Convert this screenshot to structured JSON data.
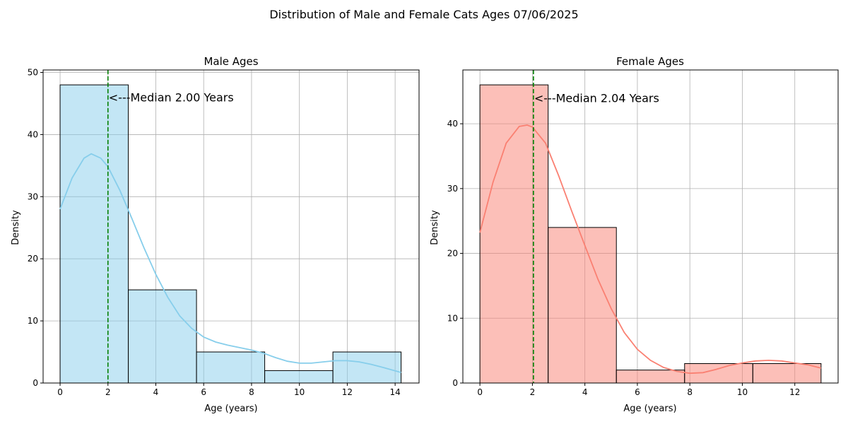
{
  "suptitle": "Distribution of Male and Female Cats Ages 07/06/2025",
  "chart_data": [
    {
      "type": "bar",
      "subtype": "histogram-with-kde",
      "title": "Male Ages",
      "xlabel": "Age (years)",
      "ylabel": "Density",
      "xlim": [
        -0.71,
        15.0
      ],
      "ylim": [
        0,
        50.4
      ],
      "xticks": [
        0,
        2,
        4,
        6,
        8,
        10,
        12,
        14
      ],
      "xtick_labels": [
        "0",
        "2",
        "4",
        "6",
        "8",
        "10",
        "12",
        "14"
      ],
      "yticks": [
        0,
        10,
        20,
        30,
        40,
        50
      ],
      "ytick_labels": [
        "0",
        "10",
        "20",
        "30",
        "40",
        "50"
      ],
      "grid": true,
      "bar_color": "#87ceeb",
      "bars": [
        {
          "x0": 0,
          "x1": 2.85,
          "value": 48
        },
        {
          "x0": 2.85,
          "x1": 5.7,
          "value": 15
        },
        {
          "x0": 5.7,
          "x1": 8.55,
          "value": 5
        },
        {
          "x0": 8.55,
          "x1": 11.4,
          "value": 2
        },
        {
          "x0": 11.4,
          "x1": 14.25,
          "value": 5
        }
      ],
      "kde": {
        "color": "#87ceeb",
        "x": [
          0,
          0.5,
          1.0,
          1.3,
          1.7,
          2.0,
          2.5,
          3.0,
          3.5,
          4.0,
          4.5,
          5.0,
          5.5,
          6.0,
          6.5,
          7.0,
          7.5,
          8.0,
          8.5,
          9.0,
          9.5,
          10.0,
          10.5,
          11.0,
          11.5,
          12.0,
          12.5,
          13.0,
          13.5,
          14.25
        ],
        "y": [
          28,
          33,
          36.2,
          36.9,
          36.2,
          34.8,
          31,
          26.5,
          21.8,
          17.5,
          13.8,
          10.8,
          8.8,
          7.4,
          6.6,
          6.1,
          5.7,
          5.3,
          4.8,
          4.1,
          3.5,
          3.2,
          3.2,
          3.4,
          3.6,
          3.6,
          3.4,
          3.0,
          2.5,
          1.7
        ]
      },
      "median": {
        "value": 2.0,
        "color": "#008000",
        "label": "<---Median 2.00 Years",
        "label_y": 46
      }
    },
    {
      "type": "bar",
      "subtype": "histogram-with-kde",
      "title": "Female Ages",
      "xlabel": "Age (years)",
      "ylabel": "Density",
      "xlim": [
        -0.65,
        13.65
      ],
      "ylim": [
        0,
        48.3
      ],
      "xticks": [
        0,
        2,
        4,
        6,
        8,
        10,
        12
      ],
      "xtick_labels": [
        "0",
        "2",
        "4",
        "6",
        "8",
        "10",
        "12"
      ],
      "yticks": [
        0,
        10,
        20,
        30,
        40
      ],
      "ytick_labels": [
        "0",
        "10",
        "20",
        "30",
        "40"
      ],
      "grid": true,
      "bar_color": "#fa8072",
      "bars": [
        {
          "x0": 0,
          "x1": 2.6,
          "value": 46
        },
        {
          "x0": 2.6,
          "x1": 5.2,
          "value": 24
        },
        {
          "x0": 5.2,
          "x1": 7.8,
          "value": 2
        },
        {
          "x0": 7.8,
          "x1": 10.4,
          "value": 3
        },
        {
          "x0": 10.4,
          "x1": 13.0,
          "value": 3
        }
      ],
      "kde": {
        "color": "#fa8072",
        "x": [
          0,
          0.5,
          1.0,
          1.5,
          1.8,
          2.0,
          2.5,
          3.0,
          3.5,
          4.0,
          4.5,
          5.0,
          5.5,
          6.0,
          6.5,
          7.0,
          7.5,
          8.0,
          8.5,
          9.0,
          9.5,
          10.0,
          10.5,
          11.0,
          11.5,
          12.0,
          12.5,
          13.0
        ],
        "y": [
          23.2,
          31,
          37,
          39.6,
          39.8,
          39.5,
          37,
          32,
          26.5,
          21.2,
          16,
          11.5,
          7.8,
          5.2,
          3.5,
          2.4,
          1.8,
          1.5,
          1.6,
          2.1,
          2.7,
          3.1,
          3.4,
          3.5,
          3.4,
          3.1,
          2.8,
          2.3
        ]
      },
      "median": {
        "value": 2.04,
        "color": "#008000",
        "label": "<---Median 2.04 Years",
        "label_y": 44
      }
    }
  ]
}
